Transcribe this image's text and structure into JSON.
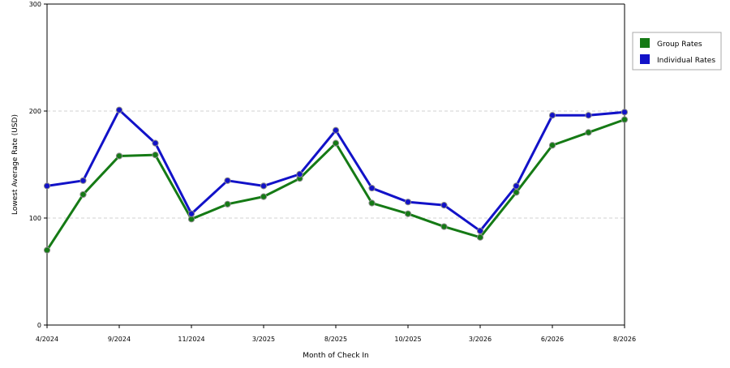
{
  "chart_data": {
    "type": "line",
    "title": "",
    "xlabel": "Month of Check In",
    "ylabel": "Lowest Average Rate (USD)",
    "ylim": [
      0,
      300
    ],
    "yticks": [
      "0",
      "100",
      "200",
      "300"
    ],
    "grid": "horizontal dashed at 100 and 200",
    "legend_position": "top-right",
    "x_tick_labels": [
      {
        "index": 0,
        "label": "4/2024"
      },
      {
        "index": 2,
        "label": "9/2024"
      },
      {
        "index": 4,
        "label": "11/2024"
      },
      {
        "index": 6,
        "label": "3/2025"
      },
      {
        "index": 8,
        "label": "8/2025"
      },
      {
        "index": 10,
        "label": "10/2025"
      },
      {
        "index": 12,
        "label": "3/2026"
      },
      {
        "index": 14,
        "label": "6/2026"
      },
      {
        "index": 16,
        "label": "8/2026"
      }
    ],
    "point_count": 17,
    "series": [
      {
        "name": "Group Rates",
        "color": "#157a15",
        "values": [
          70,
          122,
          158,
          159,
          99,
          113,
          120,
          137,
          170,
          114,
          104,
          92,
          82,
          124,
          168,
          180,
          192
        ]
      },
      {
        "name": "Individual Rates",
        "color": "#1212c8",
        "values": [
          130,
          135,
          201,
          170,
          104,
          135,
          130,
          141,
          182,
          128,
          115,
          112,
          88,
          130,
          196,
          196,
          199
        ]
      }
    ]
  }
}
